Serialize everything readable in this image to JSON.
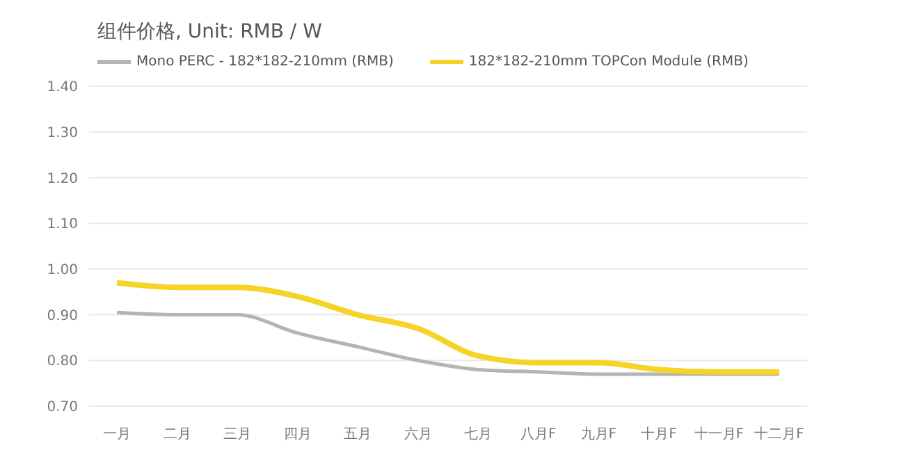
{
  "chart_data": {
    "type": "line",
    "title": "组件价格, Unit: RMB / W",
    "categories": [
      "一月",
      "二月",
      "三月",
      "四月",
      "五月",
      "六月",
      "七月",
      "八月F",
      "九月F",
      "十月F",
      "十一月F",
      "十二月F"
    ],
    "series": [
      {
        "name": "Mono PERC - 182*182-210mm (RMB)",
        "color": "#b4b4b4",
        "values": [
          0.905,
          0.9,
          0.9,
          0.86,
          0.83,
          0.8,
          0.78,
          0.775,
          0.77,
          0.77,
          0.77,
          0.77
        ]
      },
      {
        "name": "182*182-210mm TOPCon Module (RMB)",
        "color": "#f5d327",
        "values": [
          0.97,
          0.96,
          0.96,
          0.94,
          0.9,
          0.87,
          0.81,
          0.795,
          0.795,
          0.78,
          0.775,
          0.775
        ]
      }
    ],
    "ylim": [
      0.7,
      1.4
    ],
    "yticks": [
      {
        "value": 0.7,
        "label": "0.70"
      },
      {
        "value": 0.8,
        "label": "0.80"
      },
      {
        "value": 0.9,
        "label": "0.90"
      },
      {
        "value": 1.0,
        "label": "1.00"
      },
      {
        "value": 1.1,
        "label": "1.10"
      },
      {
        "value": 1.2,
        "label": "1.20"
      },
      {
        "value": 1.3,
        "label": "1.30"
      },
      {
        "value": 1.4,
        "label": "1.40"
      }
    ],
    "grid": "y",
    "legend": "top left",
    "marker": "none",
    "line_style": "solid"
  }
}
